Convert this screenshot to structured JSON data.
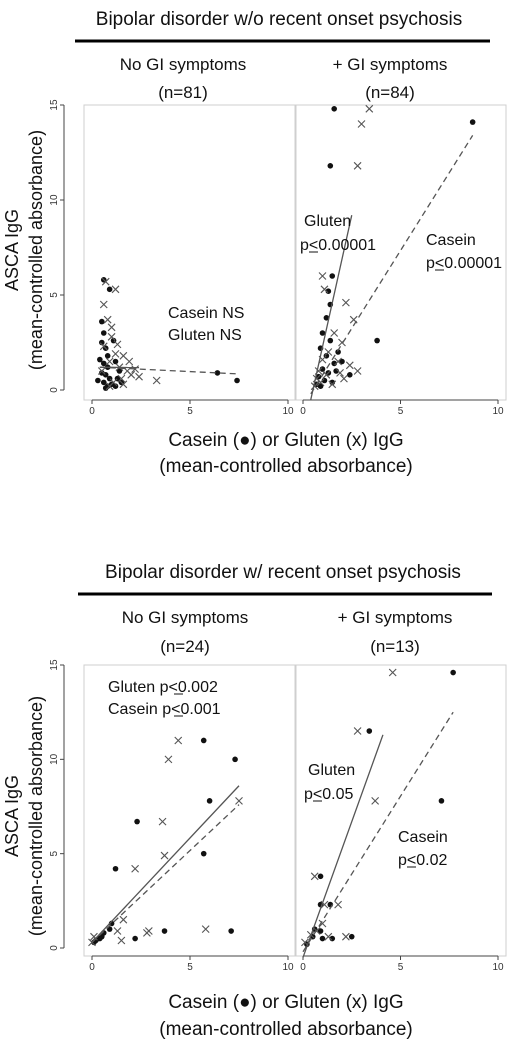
{
  "sections": [
    {
      "title": "Bipolar disorder w/o recent onset psychosis",
      "ylabel_line1": "ASCA IgG",
      "ylabel_line2": "(mean-controlled absorbance)",
      "xlabel_line1": "Casein (●) or Gluten (x) IgG",
      "xlabel_line2": "(mean-controlled absorbance)",
      "panels": [
        {
          "title": "No GI symptoms",
          "n": "(n=81)",
          "annotations": [
            {
              "text": "Casein NS",
              "ul": false
            },
            {
              "text": "Gluten NS",
              "ul": false
            }
          ]
        },
        {
          "title": "+ GI symptoms",
          "n": "(n=84)",
          "annotations": [
            {
              "text": "Gluten",
              "ul": false
            },
            {
              "text": "p<0.00001",
              "ul": true
            },
            {
              "text": "Casein",
              "ul": false
            },
            {
              "text": "p<0.00001",
              "ul": true
            }
          ]
        }
      ]
    },
    {
      "title": "Bipolar disorder w/ recent onset psychosis",
      "ylabel_line1": "ASCA IgG",
      "ylabel_line2": "(mean-controlled absorbance)",
      "xlabel_line1": "Casein (●) or Gluten (x) IgG",
      "xlabel_line2": "(mean-controlled absorbance)",
      "panels": [
        {
          "title": "No GI symptoms",
          "n": "(n=24)",
          "annotations": [
            {
              "text": "Gluten p<0.002",
              "ul": true
            },
            {
              "text": "Casein p<0.001",
              "ul": true
            }
          ]
        },
        {
          "title": "+ GI symptoms",
          "n": "(n=13)",
          "annotations": [
            {
              "text": "Gluten",
              "ul": false
            },
            {
              "text": "p<0.05",
              "ul": true
            },
            {
              "text": "Casein",
              "ul": false
            },
            {
              "text": "p<0.02",
              "ul": true
            }
          ]
        }
      ]
    }
  ],
  "chart_data": [
    {
      "type": "scatter",
      "panel": "Bipolar disorder w/o recent onset psychosis - No GI symptoms (n=81)",
      "xlim": [
        0,
        10
      ],
      "ylim": [
        0,
        15
      ],
      "xticks": [
        0,
        5,
        10
      ],
      "yticks": [
        0,
        5,
        10,
        15
      ],
      "series": [
        {
          "name": "Casein",
          "marker": "dot",
          "points": [
            [
              0.6,
              5.8
            ],
            [
              0.9,
              5.3
            ],
            [
              0.5,
              3.6
            ],
            [
              0.6,
              3.0
            ],
            [
              0.5,
              2.5
            ],
            [
              0.7,
              2.2
            ],
            [
              0.4,
              1.6
            ],
            [
              0.6,
              1.4
            ],
            [
              0.8,
              1.2
            ],
            [
              0.5,
              0.9
            ],
            [
              0.7,
              0.8
            ],
            [
              0.9,
              0.6
            ],
            [
              0.3,
              0.5
            ],
            [
              0.6,
              0.4
            ],
            [
              1.0,
              0.3
            ],
            [
              0.8,
              0.2
            ],
            [
              1.2,
              1.5
            ],
            [
              1.4,
              1.0
            ],
            [
              1.1,
              2.6
            ],
            [
              1.3,
              0.6
            ],
            [
              0.7,
              0.1
            ],
            [
              1.5,
              0.4
            ],
            [
              1.2,
              0.2
            ],
            [
              0.8,
              1.8
            ],
            [
              6.4,
              0.9
            ],
            [
              7.4,
              0.5
            ]
          ]
        },
        {
          "name": "Gluten",
          "marker": "x",
          "points": [
            [
              0.7,
              5.7
            ],
            [
              1.2,
              5.3
            ],
            [
              0.6,
              4.5
            ],
            [
              0.8,
              3.7
            ],
            [
              1.0,
              2.8
            ],
            [
              1.3,
              2.4
            ],
            [
              1.6,
              1.8
            ],
            [
              0.9,
              1.5
            ],
            [
              1.4,
              1.2
            ],
            [
              1.8,
              1.0
            ],
            [
              2.0,
              0.8
            ],
            [
              2.4,
              0.7
            ],
            [
              3.3,
              0.5
            ],
            [
              1.1,
              0.4
            ],
            [
              1.6,
              0.3
            ],
            [
              0.5,
              1.0
            ],
            [
              1.9,
              1.5
            ],
            [
              1.5,
              0.6
            ],
            [
              2.2,
              1.1
            ],
            [
              0.9,
              0.2
            ],
            [
              1.2,
              1.9
            ],
            [
              0.6,
              2.3
            ],
            [
              1.0,
              3.3
            ]
          ]
        }
      ],
      "fits": [
        {
          "name": "Casein",
          "style": "dashed",
          "from": [
            0.4,
            1.2
          ],
          "to": [
            7.4,
            0.85
          ]
        },
        {
          "name": "Gluten",
          "style": "solid",
          "from": [
            0.4,
            1.2
          ],
          "to": [
            2.4,
            1.18
          ]
        }
      ]
    },
    {
      "type": "scatter",
      "panel": "Bipolar disorder w/o recent onset psychosis - + GI symptoms (n=84)",
      "xlim": [
        0,
        10
      ],
      "ylim": [
        0,
        15
      ],
      "xticks": [
        0,
        5,
        10
      ],
      "yticks": [
        0,
        5,
        10,
        15
      ],
      "series": [
        {
          "name": "Casein",
          "marker": "dot",
          "points": [
            [
              1.6,
              14.8
            ],
            [
              1.4,
              11.8
            ],
            [
              8.7,
              14.1
            ],
            [
              1.5,
              6.0
            ],
            [
              1.3,
              5.2
            ],
            [
              1.4,
              4.5
            ],
            [
              1.2,
              3.8
            ],
            [
              1.0,
              3.0
            ],
            [
              1.4,
              2.6
            ],
            [
              0.9,
              2.2
            ],
            [
              1.2,
              1.8
            ],
            [
              1.6,
              1.4
            ],
            [
              1.0,
              1.1
            ],
            [
              1.3,
              0.9
            ],
            [
              0.8,
              0.7
            ],
            [
              1.1,
              0.5
            ],
            [
              1.5,
              0.4
            ],
            [
              0.7,
              0.3
            ],
            [
              0.9,
              0.2
            ],
            [
              1.7,
              1.0
            ],
            [
              2.0,
              1.5
            ],
            [
              2.4,
              0.8
            ],
            [
              1.8,
              2.0
            ],
            [
              3.8,
              2.6
            ]
          ]
        },
        {
          "name": "Gluten",
          "marker": "x",
          "points": [
            [
              3.4,
              14.8
            ],
            [
              3.0,
              14.0
            ],
            [
              2.8,
              11.8
            ],
            [
              1.0,
              6.0
            ],
            [
              1.1,
              5.3
            ],
            [
              2.2,
              4.6
            ],
            [
              2.6,
              3.7
            ],
            [
              1.6,
              3.0
            ],
            [
              2.0,
              2.5
            ],
            [
              1.3,
              2.0
            ],
            [
              1.8,
              1.5
            ],
            [
              2.4,
              1.3
            ],
            [
              0.8,
              1.0
            ],
            [
              1.2,
              0.8
            ],
            [
              2.1,
              0.6
            ],
            [
              0.9,
              0.4
            ],
            [
              1.5,
              0.3
            ],
            [
              0.6,
              0.2
            ],
            [
              2.8,
              1.0
            ],
            [
              1.0,
              1.6
            ],
            [
              1.9,
              0.9
            ],
            [
              0.7,
              0.6
            ]
          ]
        }
      ],
      "fits": [
        {
          "name": "Gluten",
          "style": "solid",
          "from": [
            0.4,
            -0.5
          ],
          "to": [
            2.5,
            9.2
          ]
        },
        {
          "name": "Casein",
          "style": "dashed",
          "from": [
            0.4,
            -0.2
          ],
          "to": [
            8.7,
            13.4
          ]
        }
      ]
    },
    {
      "type": "scatter",
      "panel": "Bipolar disorder w/ recent onset psychosis - No GI symptoms (n=24)",
      "xlim": [
        0,
        10
      ],
      "ylim": [
        0,
        15
      ],
      "xticks": [
        0,
        5,
        10
      ],
      "yticks": [
        0,
        5,
        10,
        15
      ],
      "series": [
        {
          "name": "Casein",
          "marker": "dot",
          "points": [
            [
              5.7,
              11.0
            ],
            [
              7.3,
              10.0
            ],
            [
              6.0,
              7.8
            ],
            [
              2.3,
              6.7
            ],
            [
              5.7,
              5.0
            ],
            [
              1.2,
              4.2
            ],
            [
              3.7,
              0.9
            ],
            [
              7.1,
              0.9
            ],
            [
              2.2,
              0.5
            ],
            [
              0.9,
              1.0
            ],
            [
              0.5,
              0.6
            ],
            [
              0.2,
              0.4
            ],
            [
              0.1,
              0.3
            ],
            [
              0.6,
              0.8
            ],
            [
              1.0,
              1.3
            ],
            [
              0.4,
              0.5
            ]
          ]
        },
        {
          "name": "Gluten",
          "marker": "x",
          "points": [
            [
              4.4,
              11.0
            ],
            [
              3.9,
              10.0
            ],
            [
              7.5,
              7.8
            ],
            [
              3.6,
              6.7
            ],
            [
              3.7,
              4.9
            ],
            [
              2.2,
              4.2
            ],
            [
              5.8,
              1.0
            ],
            [
              2.8,
              0.8
            ],
            [
              1.6,
              1.5
            ],
            [
              1.3,
              0.9
            ],
            [
              0.1,
              0.6
            ],
            [
              0.0,
              0.3
            ],
            [
              1.5,
              0.4
            ],
            [
              2.9,
              0.9
            ]
          ]
        }
      ],
      "fits": [
        {
          "name": "Gluten",
          "style": "solid",
          "from": [
            0.0,
            0.3
          ],
          "to": [
            7.5,
            8.6
          ]
        },
        {
          "name": "Casein",
          "style": "dashed",
          "from": [
            0.0,
            0.3
          ],
          "to": [
            7.5,
            7.6
          ]
        }
      ]
    },
    {
      "type": "scatter",
      "panel": "Bipolar disorder w/ recent onset psychosis - + GI symptoms (n=13)",
      "xlim": [
        0,
        10
      ],
      "ylim": [
        0,
        15
      ],
      "xticks": [
        0,
        5,
        10
      ],
      "yticks": [
        0,
        5,
        10,
        15
      ],
      "series": [
        {
          "name": "Casein",
          "marker": "dot",
          "points": [
            [
              7.7,
              14.6
            ],
            [
              3.4,
              11.5
            ],
            [
              7.1,
              7.8
            ],
            [
              0.9,
              3.8
            ],
            [
              1.4,
              2.3
            ],
            [
              0.9,
              2.3
            ],
            [
              0.6,
              1.0
            ],
            [
              0.9,
              0.9
            ],
            [
              1.0,
              0.5
            ],
            [
              0.5,
              0.6
            ],
            [
              1.5,
              0.5
            ],
            [
              2.5,
              0.6
            ],
            [
              0.2,
              0.2
            ]
          ]
        },
        {
          "name": "Gluten",
          "marker": "x",
          "points": [
            [
              4.6,
              14.6
            ],
            [
              2.8,
              11.5
            ],
            [
              3.7,
              7.8
            ],
            [
              0.6,
              3.8
            ],
            [
              1.1,
              2.3
            ],
            [
              1.8,
              2.3
            ],
            [
              0.7,
              0.9
            ],
            [
              0.4,
              0.7
            ],
            [
              1.3,
              0.6
            ],
            [
              2.2,
              0.6
            ],
            [
              0.1,
              0.3
            ],
            [
              1.0,
              1.3
            ]
          ]
        }
      ],
      "fits": [
        {
          "name": "Gluten",
          "style": "solid",
          "from": [
            0.0,
            -0.5
          ],
          "to": [
            4.1,
            11.3
          ]
        },
        {
          "name": "Casein",
          "style": "dashed",
          "from": [
            0.0,
            -0.2
          ],
          "to": [
            7.7,
            12.5
          ]
        }
      ]
    }
  ]
}
